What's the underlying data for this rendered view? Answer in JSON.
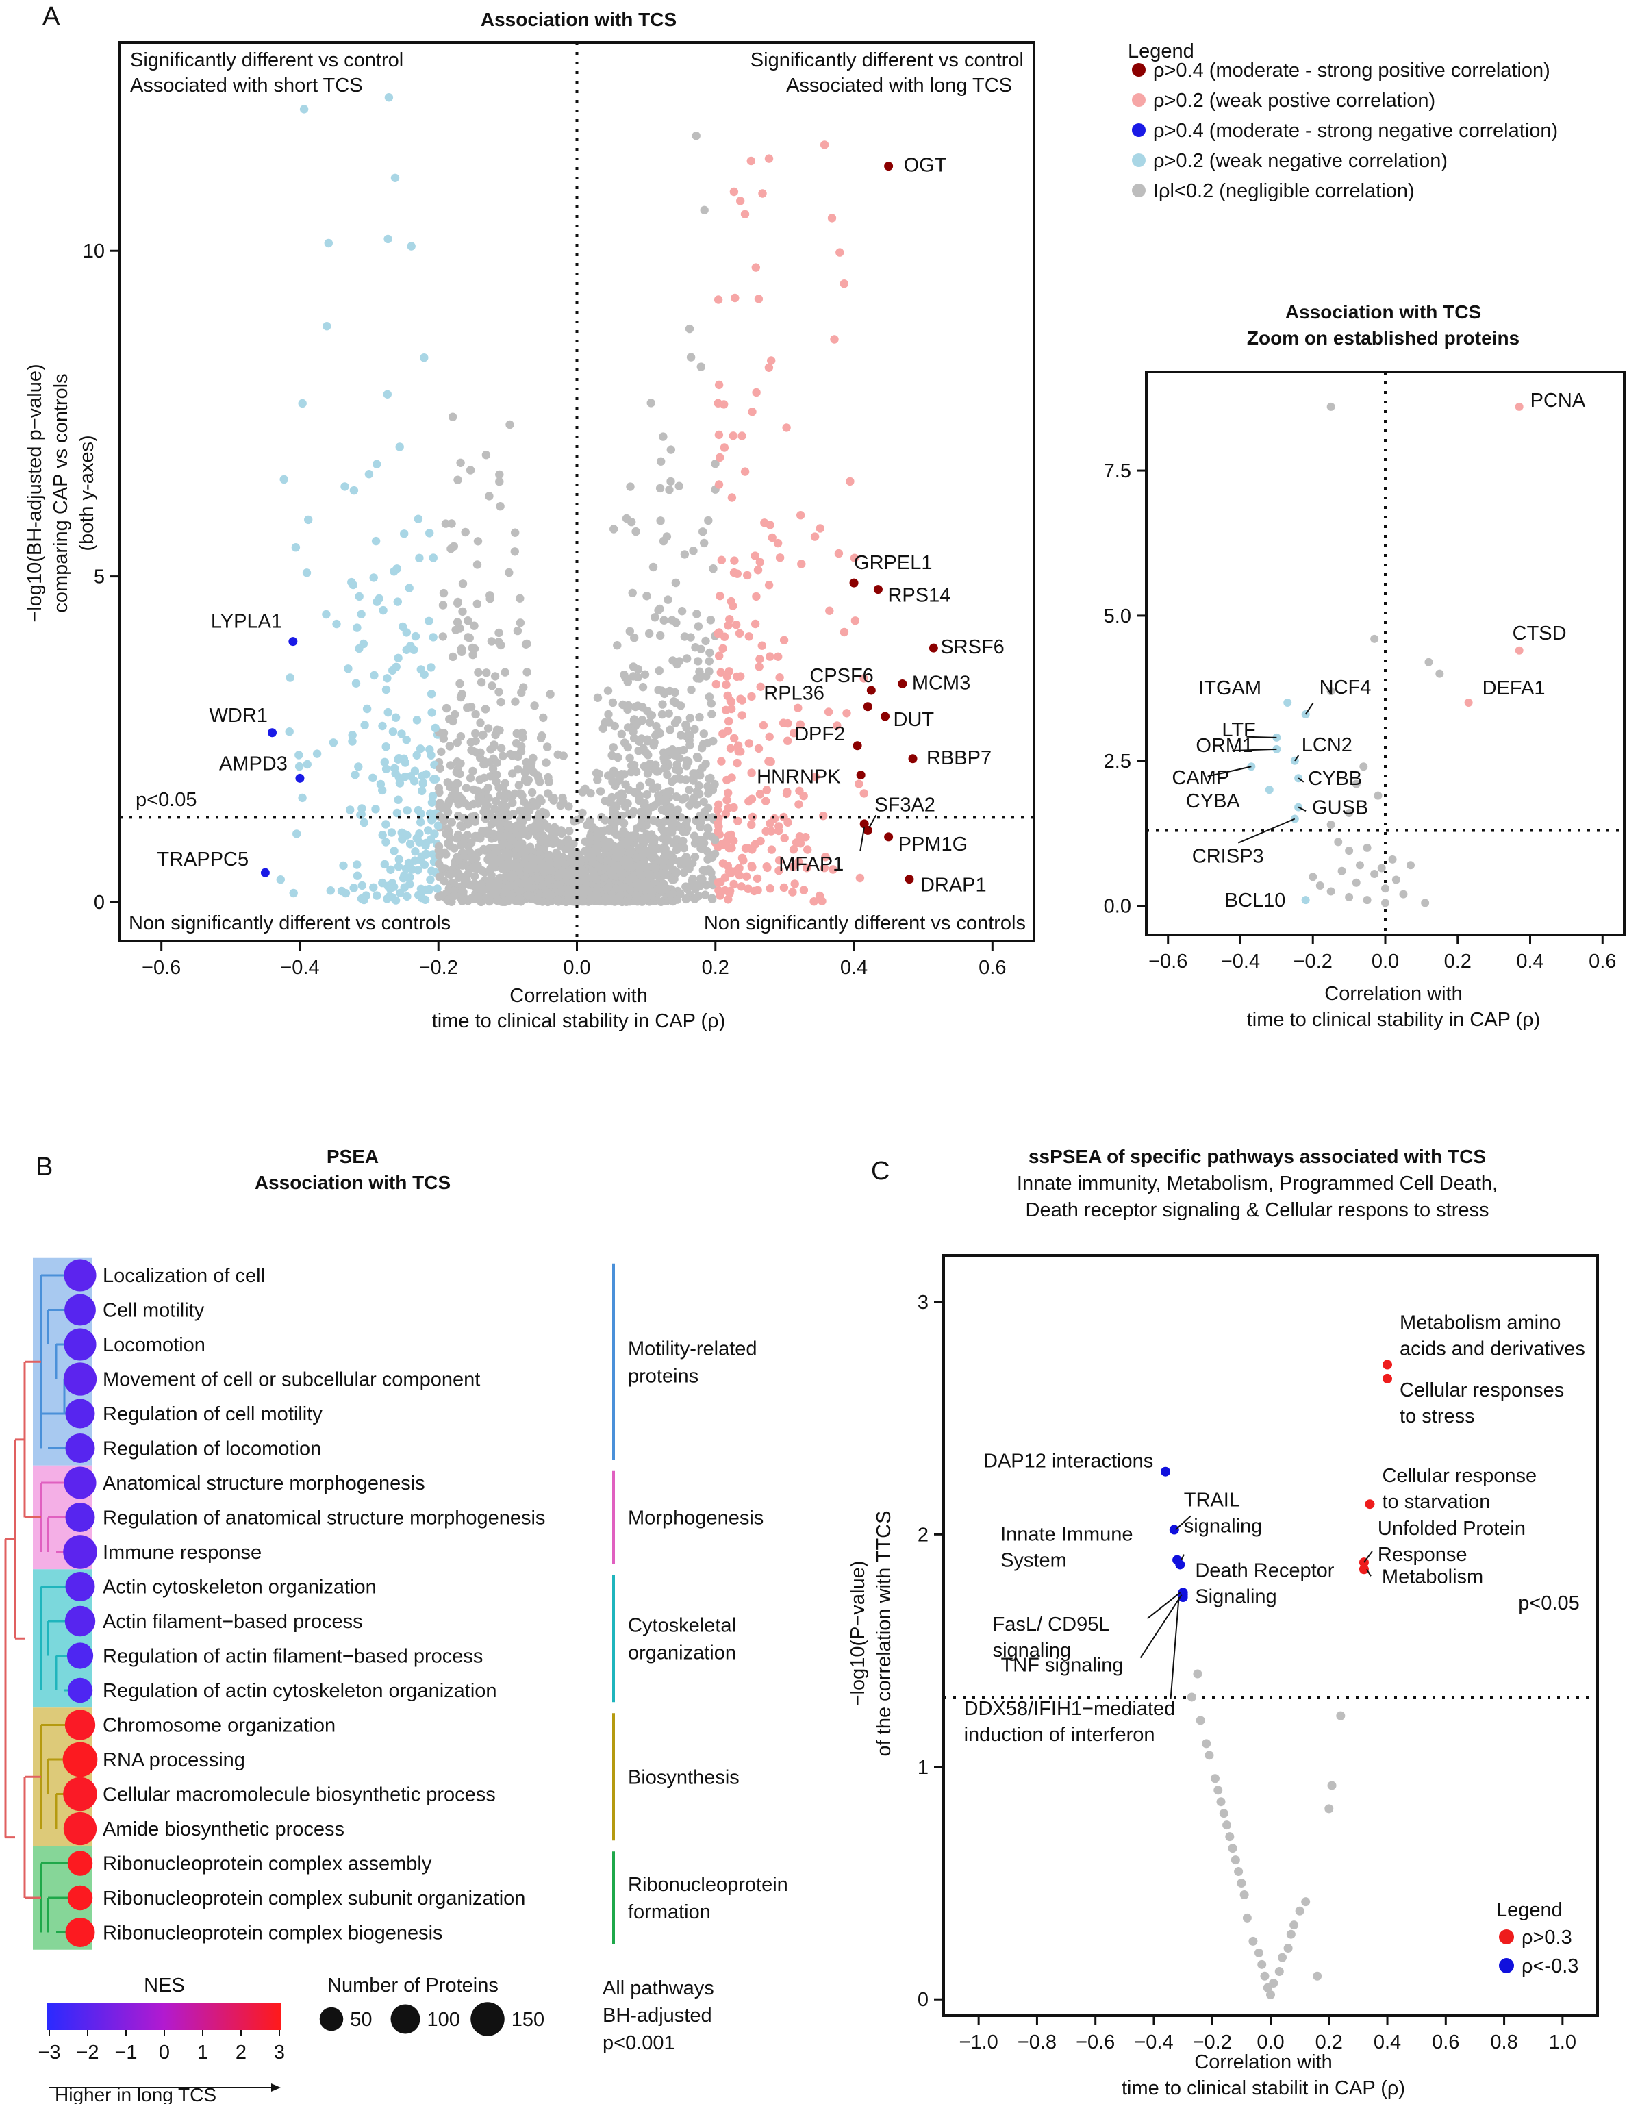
{
  "panels": {
    "A": "A",
    "B": "B",
    "C": "C"
  },
  "colors": {
    "strong_pos": "#8b0000",
    "weak_pos": "#f6a6a6",
    "strong_neg": "#1a1ae6",
    "weak_neg": "#a9d6e5",
    "negligible": "#bdbdbd",
    "pos03": "#ee1c1c",
    "neg03": "#1010dd"
  },
  "legend_A": {
    "title": "Legend",
    "items": [
      {
        "label": "ρ>0.4 (moderate - strong positive correlation)",
        "color": "#8b0000"
      },
      {
        "label": "ρ>0.2 (weak postive correlation)",
        "color": "#f6a6a6"
      },
      {
        "label": "ρ>0.4 (moderate - strong negative correlation)",
        "color": "#1a1ae6"
      },
      {
        "label": "ρ>0.2 (weak negative correlation)",
        "color": "#a9d6e5"
      },
      {
        "label": "Iρl<0.2 (negligible correlation)",
        "color": "#bdbdbd"
      }
    ]
  },
  "chart_data": [
    {
      "id": "main",
      "type": "scatter",
      "title": "Association with TCS",
      "xlabel": [
        "Correlation with",
        "time to clinical stability in CAP (ρ)"
      ],
      "ylabel": [
        "−log10(BH-adjusted p−value)",
        "comparing CAP vs controls",
        "(both y-axes)"
      ],
      "xlim": [
        -0.66,
        0.66
      ],
      "ylim": [
        -0.6,
        13.2
      ],
      "xticks": [
        -0.6,
        -0.4,
        -0.2,
        0.0,
        0.2,
        0.4,
        0.6
      ],
      "xtick_labels": [
        "−0.6",
        "−0.4",
        "−0.2",
        "0.0",
        "0.2",
        "0.4",
        "0.6"
      ],
      "yticks": [
        0,
        5,
        10
      ],
      "ytick_labels": [
        "0",
        "5",
        "10"
      ],
      "threshold_label": "p<0.05",
      "threshold_y": 1.3,
      "quadrant_labels": {
        "top_left": [
          "Significantly different vs control",
          "Associated with short TCS"
        ],
        "top_right": [
          "Significantly different vs control",
          "Associated with long TCS"
        ],
        "bottom_left": "Non significantly different vs controls",
        "bottom_right": "Non significantly different vs controls"
      },
      "labeled_points": [
        {
          "label": "OGT",
          "x": 0.45,
          "y": 11.3,
          "cls": "strong_pos"
        },
        {
          "label": "GRPEL1",
          "x": 0.4,
          "y": 4.9,
          "cls": "strong_pos"
        },
        {
          "label": "RPS14",
          "x": 0.435,
          "y": 4.8,
          "cls": "strong_pos"
        },
        {
          "label": "SRSF6",
          "x": 0.515,
          "y": 3.9,
          "cls": "strong_pos"
        },
        {
          "label": "CPSF6",
          "x": 0.425,
          "y": 3.25,
          "cls": "strong_pos"
        },
        {
          "label": "MCM3",
          "x": 0.47,
          "y": 3.35,
          "cls": "strong_pos"
        },
        {
          "label": "RPL36",
          "x": 0.42,
          "y": 3.0,
          "cls": "strong_pos"
        },
        {
          "label": "DUT",
          "x": 0.445,
          "y": 2.85,
          "cls": "strong_pos"
        },
        {
          "label": "DPF2",
          "x": 0.405,
          "y": 2.4,
          "cls": "strong_pos"
        },
        {
          "label": "RBBP7",
          "x": 0.485,
          "y": 2.2,
          "cls": "strong_pos"
        },
        {
          "label": "HNRNPK",
          "x": 0.41,
          "y": 1.95,
          "cls": "strong_pos"
        },
        {
          "label": "SF3A2",
          "x": 0.42,
          "y": 1.1,
          "cls": "strong_pos"
        },
        {
          "label": "PPM1G",
          "x": 0.45,
          "y": 1.0,
          "cls": "strong_pos"
        },
        {
          "label": "MFAP1",
          "x": 0.415,
          "y": 1.2,
          "cls": "strong_pos"
        },
        {
          "label": "DRAP1",
          "x": 0.48,
          "y": 0.35,
          "cls": "strong_pos"
        },
        {
          "label": "LYPLA1",
          "x": -0.41,
          "y": 4.0,
          "cls": "strong_neg"
        },
        {
          "label": "WDR1",
          "x": -0.44,
          "y": 2.6,
          "cls": "strong_neg"
        },
        {
          "label": "AMPD3",
          "x": -0.4,
          "y": 1.9,
          "cls": "strong_neg"
        },
        {
          "label": "TRAPPC5",
          "x": -0.45,
          "y": 0.45,
          "cls": "strong_neg"
        }
      ]
    },
    {
      "id": "zoom",
      "type": "scatter",
      "title": [
        "Association with TCS",
        "Zoom on established proteins"
      ],
      "xlabel": [
        "Correlation with",
        "time to clinical stability in CAP (ρ)"
      ],
      "xlim": [
        -0.66,
        0.66
      ],
      "ylim": [
        -0.5,
        9.2
      ],
      "xticks": [
        -0.6,
        -0.4,
        -0.2,
        0.0,
        0.2,
        0.4,
        0.6
      ],
      "xtick_labels": [
        "−0.6",
        "−0.4",
        "−0.2",
        "0.0",
        "0.2",
        "0.4",
        "0.6"
      ],
      "yticks": [
        0,
        2.5,
        5,
        7.5
      ],
      "ytick_labels": [
        "0.0",
        "2.5",
        "5.0",
        "7.5"
      ],
      "threshold_y": 1.3,
      "labeled_points": [
        {
          "label": "PCNA",
          "x": 0.37,
          "y": 8.6,
          "cls": "weak_pos"
        },
        {
          "label": "CTSD",
          "x": 0.37,
          "y": 4.4,
          "cls": "weak_pos"
        },
        {
          "label": "DEFA1",
          "x": 0.23,
          "y": 3.5,
          "cls": "weak_pos"
        },
        {
          "label": "ITGAM",
          "x": -0.27,
          "y": 3.5,
          "cls": "weak_neg"
        },
        {
          "label": "NCF4",
          "x": -0.22,
          "y": 3.3,
          "cls": "weak_neg"
        },
        {
          "label": "LTF",
          "x": -0.3,
          "y": 2.9,
          "cls": "weak_neg"
        },
        {
          "label": "ORM1",
          "x": -0.3,
          "y": 2.7,
          "cls": "weak_neg"
        },
        {
          "label": "LCN2",
          "x": -0.25,
          "y": 2.5,
          "cls": "weak_neg"
        },
        {
          "label": "CAMP",
          "x": -0.37,
          "y": 2.4,
          "cls": "weak_neg"
        },
        {
          "label": "CYBB",
          "x": -0.24,
          "y": 2.2,
          "cls": "weak_neg"
        },
        {
          "label": "CYBA",
          "x": -0.32,
          "y": 2.0,
          "cls": "weak_neg"
        },
        {
          "label": "GUSB",
          "x": -0.24,
          "y": 1.7,
          "cls": "weak_neg"
        },
        {
          "label": "CRISP3",
          "x": -0.25,
          "y": 1.5,
          "cls": "weak_neg"
        },
        {
          "label": "BCL10",
          "x": -0.22,
          "y": 0.1,
          "cls": "weak_neg"
        }
      ],
      "grey_points": [
        {
          "x": -0.15,
          "y": 8.6
        },
        {
          "x": 0.12,
          "y": 4.2
        },
        {
          "x": 0.15,
          "y": 4.0
        },
        {
          "x": -0.03,
          "y": 4.6
        },
        {
          "x": -0.15,
          "y": 3.7
        },
        {
          "x": -0.08,
          "y": 2.1
        },
        {
          "x": -0.06,
          "y": 2.4
        },
        {
          "x": -0.02,
          "y": 1.9
        },
        {
          "x": -0.1,
          "y": 1.6
        },
        {
          "x": -0.15,
          "y": 1.4
        },
        {
          "x": -0.13,
          "y": 1.1
        },
        {
          "x": -0.05,
          "y": 1.0
        },
        {
          "x": -0.1,
          "y": 0.95
        },
        {
          "x": 0.02,
          "y": 0.8
        },
        {
          "x": 0.07,
          "y": 0.7
        },
        {
          "x": -0.2,
          "y": 0.5
        },
        {
          "x": -0.12,
          "y": 0.6
        },
        {
          "x": -0.03,
          "y": 0.55
        },
        {
          "x": -0.08,
          "y": 0.4
        },
        {
          "x": 0.0,
          "y": 0.3
        },
        {
          "x": 0.05,
          "y": 0.2
        },
        {
          "x": -0.15,
          "y": 0.25
        },
        {
          "x": -0.1,
          "y": 0.15
        },
        {
          "x": 0.11,
          "y": 0.05
        },
        {
          "x": -0.05,
          "y": 0.1
        },
        {
          "x": 0.0,
          "y": 0.05
        },
        {
          "x": -0.18,
          "y": 0.35
        },
        {
          "x": 0.03,
          "y": 0.45
        },
        {
          "x": -0.07,
          "y": 0.7
        },
        {
          "x": -0.01,
          "y": 0.65
        }
      ]
    },
    {
      "id": "psea",
      "type": "table",
      "title": [
        "PSEA",
        "Association with TCS"
      ],
      "pathways": [
        {
          "name": "Localization of cell",
          "nes": -1.9,
          "size": 130
        },
        {
          "name": "Cell motility",
          "nes": -2.0,
          "size": 120
        },
        {
          "name": "Locomotion",
          "nes": -2.0,
          "size": 130
        },
        {
          "name": "Movement of cell or subcellular component",
          "nes": -1.9,
          "size": 140
        },
        {
          "name": "Regulation of cell motility",
          "nes": -2.0,
          "size": 100
        },
        {
          "name": "Regulation of locomotion",
          "nes": -2.0,
          "size": 100
        },
        {
          "name": "Anatomical structure morphogenesis",
          "nes": -1.9,
          "size": 130
        },
        {
          "name": "Regulation of anatomical structure morphogenesis",
          "nes": -2.0,
          "size": 100
        },
        {
          "name": "Immune response",
          "nes": -1.9,
          "size": 150
        },
        {
          "name": "Actin cytoskeleton organization",
          "nes": -2.0,
          "size": 100
        },
        {
          "name": "Actin filament−based process",
          "nes": -2.0,
          "size": 110
        },
        {
          "name": "Regulation of actin filament−based process",
          "nes": -2.2,
          "size": 70
        },
        {
          "name": "Regulation of actin cytoskeleton organization",
          "nes": -2.2,
          "size": 60
        },
        {
          "name": "Chromosome organization",
          "nes": 2.8,
          "size": 110
        },
        {
          "name": "RNA processing",
          "nes": 2.9,
          "size": 160
        },
        {
          "name": "Cellular macromolecule biosynthetic process",
          "nes": 2.8,
          "size": 150
        },
        {
          "name": "Amide biosynthetic process",
          "nes": 2.8,
          "size": 140
        },
        {
          "name": "Ribonucleoprotein complex assembly",
          "nes": 2.9,
          "size": 60
        },
        {
          "name": "Ribonucleoprotein complex subunit organization",
          "nes": 2.9,
          "size": 60
        },
        {
          "name": "Ribonucleoprotein complex biogenesis",
          "nes": 2.9,
          "size": 100
        }
      ],
      "groups": [
        {
          "label": [
            "Motility-related",
            "proteins"
          ],
          "start": 0,
          "end": 5,
          "color": "#4a90d9",
          "bg": "#9ec3ee"
        },
        {
          "label": [
            "Morphogenesis"
          ],
          "start": 6,
          "end": 8,
          "color": "#e060c0",
          "bg": "#f3a6e3"
        },
        {
          "label": [
            "Cytoskeletal",
            "organization"
          ],
          "start": 9,
          "end": 12,
          "color": "#1fb5bd",
          "bg": "#6dd4d8"
        },
        {
          "label": [
            "Biosynthesis"
          ],
          "start": 13,
          "end": 16,
          "color": "#b59a10",
          "bg": "#d9c46a"
        },
        {
          "label": [
            "Ribonucleoprotein",
            "formation"
          ],
          "start": 17,
          "end": 19,
          "color": "#1fa84a",
          "bg": "#79d28d"
        }
      ],
      "nes_legend": {
        "title": "NES",
        "ticks": [
          "−3",
          "−2",
          "−1",
          "0",
          "1",
          "2",
          "3"
        ],
        "arrow_label": "Higher in long TCS",
        "min": -3,
        "max": 3
      },
      "size_legend": {
        "title": "Number of Proteins",
        "items": [
          50,
          100,
          150
        ],
        "labels": [
          "50",
          "100",
          "150"
        ]
      },
      "note": [
        "All pathways",
        "BH-adjusted",
        "p<0.001"
      ]
    },
    {
      "id": "sspsea",
      "type": "scatter",
      "title": "ssPSEA of specific pathways associated with TCS",
      "subtitle": [
        "Innate immunity, Metabolism, Programmed Cell Death,",
        "Death receptor signaling & Cellular respons to stress"
      ],
      "xlabel": [
        "Correlation with",
        "time to clinical stabilit in CAP (ρ)"
      ],
      "ylabel": [
        "−log10(P−value)",
        "of the correlation with TTCS"
      ],
      "xlim": [
        -1.12,
        1.12
      ],
      "ylim": [
        -0.07,
        3.2
      ],
      "xticks": [
        -1.0,
        -0.8,
        -0.6,
        -0.4,
        -0.2,
        0.0,
        0.2,
        0.4,
        0.6,
        0.8,
        1.0
      ],
      "xtick_labels": [
        "−1.0",
        "−0.8",
        "−0.6",
        "−0.4",
        "−0.2",
        "0.0",
        "0.2",
        "0.4",
        "0.6",
        "0.8",
        "1.0"
      ],
      "yticks": [
        0,
        1,
        2,
        3
      ],
      "ytick_labels": [
        "0",
        "1",
        "2",
        "3"
      ],
      "threshold_label": "p<0.05",
      "threshold_y": 1.3,
      "legend": {
        "title": "Legend",
        "items": [
          {
            "label": "ρ>0.3",
            "color": "#ee1c1c"
          },
          {
            "label": "ρ<-0.3",
            "color": "#1010dd"
          }
        ]
      },
      "labeled_points": [
        {
          "label": [
            "Metabolism amino",
            "acids and derivatives"
          ],
          "x": 0.4,
          "y": 2.73,
          "cls": "pos"
        },
        {
          "label": [
            "Cellular responses",
            "to stress"
          ],
          "x": 0.4,
          "y": 2.67,
          "cls": "pos"
        },
        {
          "label": [
            "Cellular response",
            "to starvation"
          ],
          "x": 0.34,
          "y": 2.13,
          "cls": "pos"
        },
        {
          "label": [
            "Unfolded Protein",
            "Response"
          ],
          "x": 0.32,
          "y": 1.88,
          "cls": "pos"
        },
        {
          "label": [
            "Metabolism"
          ],
          "x": 0.32,
          "y": 1.85,
          "cls": "pos"
        },
        {
          "label": [
            "DAP12 interactions"
          ],
          "x": -0.36,
          "y": 2.27,
          "cls": "neg"
        },
        {
          "label": [
            "TRAIL",
            "signaling"
          ],
          "x": -0.33,
          "y": 2.02,
          "cls": "neg"
        },
        {
          "label": [
            "Innate Immune",
            "System"
          ],
          "x": -0.32,
          "y": 1.89,
          "cls": "neg"
        },
        {
          "label": [
            "Death Receptor",
            "Signaling"
          ],
          "x": -0.31,
          "y": 1.87,
          "cls": "neg"
        },
        {
          "label": [
            "FasL/ CD95L",
            "signaling"
          ],
          "x": -0.3,
          "y": 1.75,
          "cls": "neg"
        },
        {
          "label": [
            "TNF signaling"
          ],
          "x": -0.3,
          "y": 1.74,
          "cls": "neg"
        },
        {
          "label": [
            "DDX58/IFIH1−mediated",
            "induction of interferon"
          ],
          "x": -0.3,
          "y": 1.73,
          "cls": "neg"
        }
      ],
      "grey_points": [
        {
          "x": -0.25,
          "y": 1.4
        },
        {
          "x": -0.27,
          "y": 1.3
        },
        {
          "x": -0.24,
          "y": 1.2
        },
        {
          "x": -0.22,
          "y": 1.1
        },
        {
          "x": -0.21,
          "y": 1.05
        },
        {
          "x": -0.19,
          "y": 0.95
        },
        {
          "x": -0.18,
          "y": 0.9
        },
        {
          "x": -0.17,
          "y": 0.85
        },
        {
          "x": -0.16,
          "y": 0.8
        },
        {
          "x": -0.15,
          "y": 0.75
        },
        {
          "x": -0.14,
          "y": 0.7
        },
        {
          "x": -0.13,
          "y": 0.65
        },
        {
          "x": -0.12,
          "y": 0.6
        },
        {
          "x": -0.11,
          "y": 0.55
        },
        {
          "x": -0.1,
          "y": 0.5
        },
        {
          "x": -0.09,
          "y": 0.45
        },
        {
          "x": -0.08,
          "y": 0.35
        },
        {
          "x": -0.06,
          "y": 0.25
        },
        {
          "x": -0.04,
          "y": 0.2
        },
        {
          "x": -0.03,
          "y": 0.15
        },
        {
          "x": -0.02,
          "y": 0.1
        },
        {
          "x": -0.01,
          "y": 0.05
        },
        {
          "x": 0.0,
          "y": 0.02
        },
        {
          "x": 0.01,
          "y": 0.07
        },
        {
          "x": 0.03,
          "y": 0.12
        },
        {
          "x": 0.04,
          "y": 0.18
        },
        {
          "x": 0.06,
          "y": 0.22
        },
        {
          "x": 0.07,
          "y": 0.28
        },
        {
          "x": 0.08,
          "y": 0.32
        },
        {
          "x": 0.1,
          "y": 0.38
        },
        {
          "x": 0.12,
          "y": 0.42
        },
        {
          "x": 0.16,
          "y": 0.1
        },
        {
          "x": 0.2,
          "y": 0.82
        },
        {
          "x": 0.21,
          "y": 0.92
        },
        {
          "x": 0.24,
          "y": 1.22
        }
      ]
    }
  ]
}
